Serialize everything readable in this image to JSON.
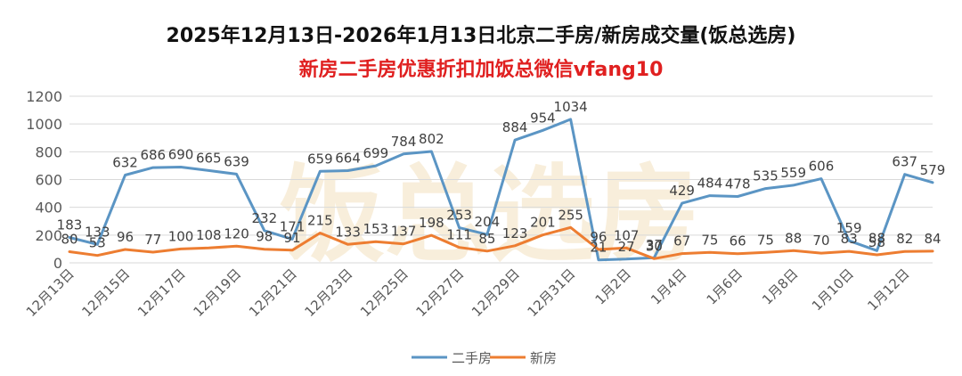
{
  "colors": {
    "second_hand": "#5B95C4",
    "new_house": "#ED7D31",
    "subtitle": "#E02020",
    "grid": "#D9D9D9",
    "axis_text": "#595959",
    "watermark": "#F2E0BE"
  },
  "watermark_text": "饭总选房",
  "chart_data": {
    "type": "line",
    "title": "2025年12月13日-2026年1月13日北京二手房/新房成交量(饭总选房)",
    "subtitle": "新房二手房优惠折扣加饭总微信vfang10",
    "x": [
      "12月13日",
      "12月14日",
      "12月15日",
      "12月16日",
      "12月17日",
      "12月18日",
      "12月19日",
      "12月20日",
      "12月21日",
      "12月22日",
      "12月23日",
      "12月24日",
      "12月25日",
      "12月26日",
      "12月27日",
      "12月28日",
      "12月29日",
      "12月30日",
      "12月31日",
      "1月1日",
      "1月2日",
      "1月3日",
      "1月4日",
      "1月5日",
      "1月6日",
      "1月7日",
      "1月8日",
      "1月9日",
      "1月10日",
      "1月11日",
      "1月12日",
      "1月13日"
    ],
    "x_tick_labels": [
      "12月13日",
      "12月15日",
      "12月17日",
      "12月19日",
      "12月21日",
      "12月23日",
      "12月25日",
      "12月27日",
      "12月29日",
      "12月31日",
      "1月2日",
      "1月4日",
      "1月6日",
      "1月8日",
      "1月10日",
      "1月12日"
    ],
    "series": [
      {
        "name": "二手房",
        "values": [
          183,
          133,
          632,
          686,
          690,
          665,
          639,
          232,
          171,
          659,
          664,
          699,
          784,
          802,
          253,
          204,
          884,
          954,
          1034,
          21,
          27,
          37,
          429,
          484,
          478,
          535,
          559,
          606,
          159,
          88,
          637,
          579
        ]
      },
      {
        "name": "新房",
        "values": [
          80,
          53,
          96,
          77,
          100,
          108,
          120,
          98,
          91,
          215,
          133,
          153,
          137,
          198,
          111,
          85,
          123,
          201,
          255,
          96,
          107,
          30,
          67,
          75,
          66,
          75,
          88,
          70,
          83,
          58,
          82,
          84
        ]
      }
    ],
    "ylim": [
      0,
      1200
    ],
    "y_ticks": [
      0,
      200,
      400,
      600,
      800,
      1000,
      1200
    ],
    "grid": true,
    "legend_position": "bottom-center",
    "xlabel": "",
    "ylabel": ""
  }
}
